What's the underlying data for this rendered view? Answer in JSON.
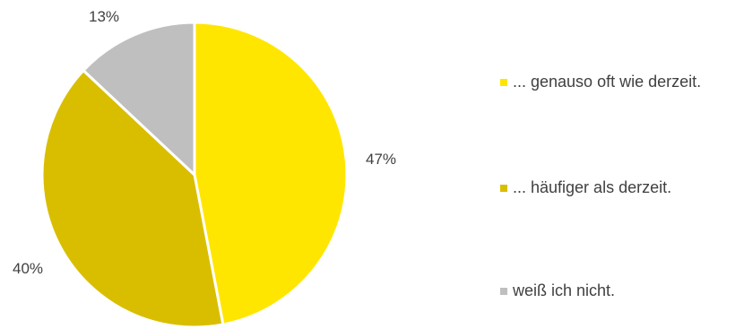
{
  "chart_data": {
    "type": "pie",
    "categories": [
      "... genauso oft wie derzeit.",
      "... häufiger als derzeit.",
      "weiß ich nicht."
    ],
    "values": [
      47,
      40,
      13
    ],
    "value_labels": [
      "47%",
      "40%",
      "13%"
    ],
    "colors": [
      "#FFE600",
      "#D9BE00",
      "#BFBFBF"
    ],
    "legend_placement": "right",
    "title": ""
  }
}
